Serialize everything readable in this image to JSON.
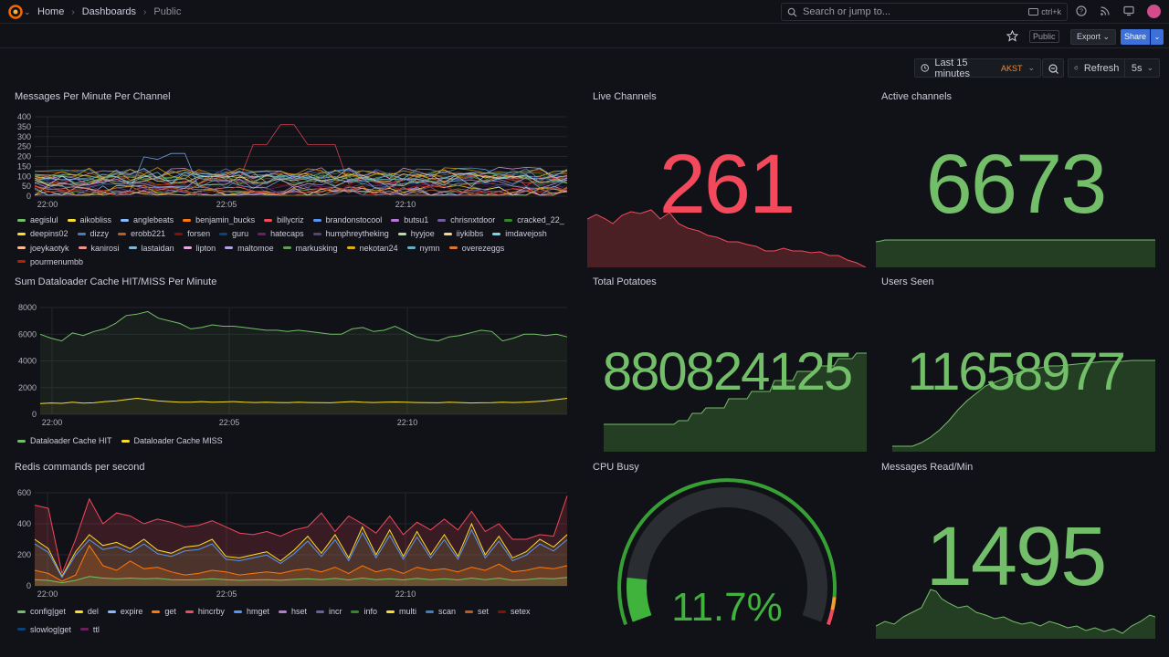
{
  "nav": {
    "breadcrumbs": [
      "Home",
      "Dashboards",
      "Public"
    ],
    "search_placeholder": "Search or jump to...",
    "search_shortcut": "ctrl+k"
  },
  "toolbar": {
    "public_label": "Public",
    "export_label": "Export",
    "share_label": "Share",
    "time_range": "Last 15 minutes",
    "timezone": "AKST",
    "refresh_label": "Refresh",
    "refresh_interval": "5s"
  },
  "colors": {
    "green": "#73bf69",
    "red": "#f2495c",
    "yellow": "#fade2a",
    "accent_blue": "#3d71d9"
  },
  "panels": {
    "messages_per_minute": {
      "title": "Messages Per Minute Per Channel",
      "y_ticks": [
        "400",
        "350",
        "300",
        "250",
        "200",
        "150",
        "100",
        "50",
        "0"
      ],
      "x_ticks": [
        "22:00",
        "22:05",
        "22:10"
      ],
      "legend": [
        {
          "name": "aegislul",
          "color": "#73bf69"
        },
        {
          "name": "aikobliss",
          "color": "#fade2a"
        },
        {
          "name": "anglebeats",
          "color": "#8ab8ff"
        },
        {
          "name": "benjamin_bucks",
          "color": "#ff780a"
        },
        {
          "name": "billycriz",
          "color": "#f2495c"
        },
        {
          "name": "brandonstocool",
          "color": "#5794f2"
        },
        {
          "name": "butsu1",
          "color": "#b877d9"
        },
        {
          "name": "chrisnxtdoor",
          "color": "#705da0"
        },
        {
          "name": "cracked_22_",
          "color": "#37872d"
        },
        {
          "name": "deepins02",
          "color": "#fade2a"
        },
        {
          "name": "dizzy",
          "color": "#447ebc"
        },
        {
          "name": "erobb221",
          "color": "#c15c17"
        },
        {
          "name": "forsen",
          "color": "#890f02"
        },
        {
          "name": "guru",
          "color": "#0a437c"
        },
        {
          "name": "hatecaps",
          "color": "#6d1f62"
        },
        {
          "name": "humphreytheking",
          "color": "#584477"
        },
        {
          "name": "hyyjoe",
          "color": "#b7dbab"
        },
        {
          "name": "iiykibbs",
          "color": "#f4d598"
        },
        {
          "name": "imdavejosh",
          "color": "#70dbed"
        },
        {
          "name": "joeykaotyk",
          "color": "#f9ba8f"
        },
        {
          "name": "kanirosi",
          "color": "#f29191"
        },
        {
          "name": "lastaidan",
          "color": "#82b5d8"
        },
        {
          "name": "lipton",
          "color": "#e5a8e2"
        },
        {
          "name": "maltomoe",
          "color": "#aea2e0"
        },
        {
          "name": "markusking",
          "color": "#629e51"
        },
        {
          "name": "nekotan24",
          "color": "#e5ac0e"
        },
        {
          "name": "nymn",
          "color": "#64b0c8"
        },
        {
          "name": "overezeggs",
          "color": "#e0752d"
        },
        {
          "name": "pourmenumbb",
          "color": "#bf1b00"
        }
      ]
    },
    "live_channels": {
      "title": "Live Channels",
      "value": "261"
    },
    "active_channels": {
      "title": "Active channels",
      "value": "6673"
    },
    "dataloader": {
      "title": "Sum Dataloader Cache HIT/MISS Per Minute",
      "y_ticks": [
        "8000",
        "6000",
        "4000",
        "2000",
        "0"
      ],
      "x_ticks": [
        "22:00",
        "22:05",
        "22:10"
      ],
      "legend": [
        {
          "name": "Dataloader Cache HIT",
          "color": "#73bf69"
        },
        {
          "name": "Dataloader Cache MISS",
          "color": "#fade2a"
        }
      ]
    },
    "total_potatoes": {
      "title": "Total Potatoes",
      "value": "880824125"
    },
    "users_seen": {
      "title": "Users Seen",
      "value": "11658977"
    },
    "redis": {
      "title": "Redis commands per second",
      "y_ticks": [
        "600",
        "400",
        "200",
        "0"
      ],
      "x_ticks": [
        "22:00",
        "22:05",
        "22:10"
      ],
      "legend": [
        {
          "name": "config|get",
          "color": "#73bf69"
        },
        {
          "name": "del",
          "color": "#fade2a"
        },
        {
          "name": "expire",
          "color": "#8ab8ff"
        },
        {
          "name": "get",
          "color": "#ff780a"
        },
        {
          "name": "hincrby",
          "color": "#f2495c"
        },
        {
          "name": "hmget",
          "color": "#5794f2"
        },
        {
          "name": "hset",
          "color": "#b877d9"
        },
        {
          "name": "incr",
          "color": "#705da0"
        },
        {
          "name": "info",
          "color": "#37872d"
        },
        {
          "name": "multi",
          "color": "#fade2a"
        },
        {
          "name": "scan",
          "color": "#447ebc"
        },
        {
          "name": "set",
          "color": "#c15c17"
        },
        {
          "name": "setex",
          "color": "#890f02"
        },
        {
          "name": "slowlog|get",
          "color": "#0a437c"
        },
        {
          "name": "ttl",
          "color": "#6d1f62"
        }
      ]
    },
    "cpu_busy": {
      "title": "CPU Busy",
      "value": "11.7%",
      "percent": 11.7
    },
    "messages_read": {
      "title": "Messages Read/Min",
      "value": "1495"
    }
  }
}
